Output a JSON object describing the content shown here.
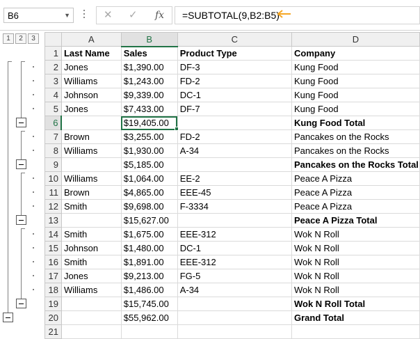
{
  "name_box": "B6",
  "formula_bar": {
    "cancel_icon": "close-icon",
    "enter_icon": "checkmark-icon",
    "fx_label": "fx",
    "formula": "=SUBTOTAL(9,B2:B5)",
    "arrow_color": "#f5a623"
  },
  "outline_levels": [
    "1",
    "2",
    "3"
  ],
  "columns": [
    "A",
    "B",
    "C",
    "D"
  ],
  "selected_cell": "B6",
  "accent_color": "#217346",
  "rows": [
    {
      "num": "1",
      "a": "Last Name",
      "b": "Sales",
      "c": "Product Type",
      "d": "Company"
    },
    {
      "num": "2",
      "a": "Jones",
      "b": "$1,390.00",
      "c": "DF-3",
      "d": "Kung Food"
    },
    {
      "num": "3",
      "a": "Williams",
      "b": "$1,243.00",
      "c": "FD-2",
      "d": "Kung Food"
    },
    {
      "num": "4",
      "a": "Johnson",
      "b": "$9,339.00",
      "c": "DC-1",
      "d": "Kung Food"
    },
    {
      "num": "5",
      "a": "Jones",
      "b": "$7,433.00",
      "c": "DF-7",
      "d": "Kung Food"
    },
    {
      "num": "6",
      "a": "",
      "b": "$19,405.00",
      "c": "",
      "d": "Kung Food Total"
    },
    {
      "num": "7",
      "a": "Brown",
      "b": "$3,255.00",
      "c": "FD-2",
      "d": "Pancakes on the Rocks"
    },
    {
      "num": "8",
      "a": "Williams",
      "b": "$1,930.00",
      "c": "A-34",
      "d": "Pancakes on the Rocks"
    },
    {
      "num": "9",
      "a": "",
      "b": "$5,185.00",
      "c": "",
      "d": "Pancakes on the Rocks Total"
    },
    {
      "num": "10",
      "a": "Williams",
      "b": "$1,064.00",
      "c": "EE-2",
      "d": "Peace A Pizza"
    },
    {
      "num": "11",
      "a": "Brown",
      "b": "$4,865.00",
      "c": "EEE-45",
      "d": "Peace A Pizza"
    },
    {
      "num": "12",
      "a": "Smith",
      "b": "$9,698.00",
      "c": "F-3334",
      "d": "Peace A Pizza"
    },
    {
      "num": "13",
      "a": "",
      "b": "$15,627.00",
      "c": "",
      "d": "Peace A Pizza Total"
    },
    {
      "num": "14",
      "a": "Smith",
      "b": "$1,675.00",
      "c": "EEE-312",
      "d": "Wok N Roll"
    },
    {
      "num": "15",
      "a": "Johnson",
      "b": "$1,480.00",
      "c": "DC-1",
      "d": "Wok N Roll"
    },
    {
      "num": "16",
      "a": "Smith",
      "b": "$1,891.00",
      "c": "EEE-312",
      "d": "Wok N Roll"
    },
    {
      "num": "17",
      "a": "Jones",
      "b": "$9,213.00",
      "c": "FG-5",
      "d": "Wok N Roll"
    },
    {
      "num": "18",
      "a": "Williams",
      "b": "$1,486.00",
      "c": "A-34",
      "d": "Wok N Roll"
    },
    {
      "num": "19",
      "a": "",
      "b": "$15,745.00",
      "c": "",
      "d": "Wok N Roll Total"
    },
    {
      "num": "20",
      "a": "",
      "b": "$55,962.00",
      "c": "",
      "d": "Grand Total"
    },
    {
      "num": "21",
      "a": "",
      "b": "",
      "c": "",
      "d": ""
    }
  ]
}
